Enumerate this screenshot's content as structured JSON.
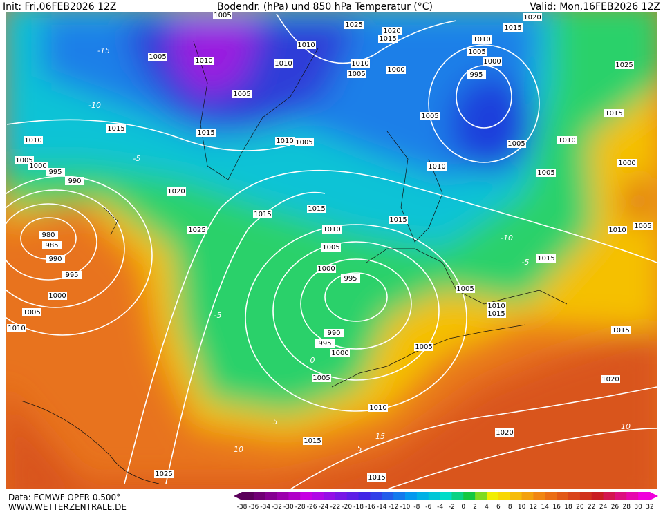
{
  "header": {
    "init": "Init: Fri,06FEB2026 12Z",
    "title": "Bodendr. (hPa) und 850 hPa Temperatur (°C)",
    "valid": "Valid: Mon,16FEB2026 12Z"
  },
  "footer": {
    "source": "Data: ECMWF OPER 0.500°",
    "site": "WWW.WETTERZENTRALE.DE"
  },
  "isobar_labels": [
    1005,
    1025,
    1020,
    1015,
    1020,
    1015,
    1010,
    1005,
    1000,
    995,
    1025,
    1015,
    1010,
    1005,
    1005,
    1000,
    1005,
    1010,
    1015,
    1015,
    1020,
    1020,
    1015,
    1015,
    1010,
    1005,
    1000,
    995,
    990,
    1005,
    1015,
    1010,
    1005,
    995,
    1000,
    1005,
    1010,
    1015,
    1015,
    1015,
    1010,
    1005,
    1000,
    1005,
    1010,
    1010,
    1010,
    1005,
    1010,
    1005,
    1015,
    1015,
    1010,
    1005,
    1000,
    995,
    990,
    1020,
    1025,
    980,
    985,
    990,
    995,
    1000,
    1005,
    1010,
    1025,
    1005,
    1010
  ],
  "temperature_labels": [
    -15,
    -10,
    -5,
    -5,
    0,
    5,
    10,
    15,
    10,
    -10,
    -5,
    5
  ],
  "colorbar_ticks": [
    -38,
    -36,
    -34,
    -32,
    -30,
    -28,
    -26,
    -24,
    -22,
    -20,
    -18,
    -16,
    -14,
    -12,
    -10,
    -8,
    -6,
    -4,
    -2,
    0,
    2,
    4,
    6,
    8,
    10,
    12,
    14,
    16,
    18,
    20,
    22,
    24,
    26,
    28,
    30,
    32
  ]
}
